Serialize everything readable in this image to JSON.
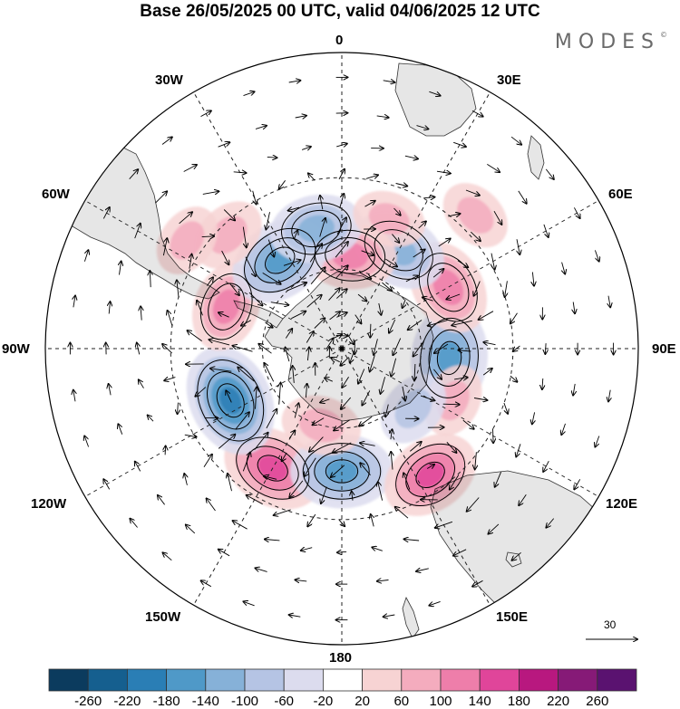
{
  "title": "Base 26/05/2025 00 UTC, valid 04/06/2025 12 UTC",
  "brand": {
    "name": "MODES",
    "mark": "©"
  },
  "longitude_labels": {
    "lon_0": "0",
    "lon_30e": "30E",
    "lon_60e": "60E",
    "lon_90e": "90E",
    "lon_120e": "120E",
    "lon_150e": "150E",
    "lon_180": "180",
    "lon_150w": "150W",
    "lon_120w": "120W",
    "lon_90w": "90W",
    "lon_60w": "60W",
    "lon_30w": "30W"
  },
  "vector_reference": {
    "value": "30"
  },
  "colorbar": {
    "tick_labels": [
      "-260",
      "-220",
      "-180",
      "-140",
      "-100",
      "-60",
      "-20",
      "20",
      "60",
      "100",
      "140",
      "180",
      "220",
      "260"
    ],
    "colors": [
      "#0b3b5e",
      "#155f8f",
      "#2a7eb5",
      "#4f99c8",
      "#86b1d8",
      "#b5c4e4",
      "#dcdcee",
      "#ffffff",
      "#f7d3d3",
      "#f4acbe",
      "#ee7eaa",
      "#e0459a",
      "#b8187f",
      "#861a77",
      "#5a1270"
    ]
  },
  "projection": {
    "type": "south-polar-stereographic",
    "pole": "South Pole"
  },
  "anomaly_centers": [
    {
      "lon": -150,
      "lat": -40,
      "value": 150
    },
    {
      "lon": -115,
      "lat": -45,
      "value": -180
    },
    {
      "lon": -70,
      "lat": -45,
      "value": 110
    },
    {
      "lon": 180,
      "lat": -45,
      "value": -150
    },
    {
      "lon": 145,
      "lat": -35,
      "value": 140
    },
    {
      "lon": 95,
      "lat": -50,
      "value": -160
    },
    {
      "lon": 60,
      "lat": -45,
      "value": 130
    },
    {
      "lon": 30,
      "lat": -48,
      "value": -130
    },
    {
      "lon": 5,
      "lat": -55,
      "value": 120
    },
    {
      "lon": -35,
      "lat": -50,
      "value": -150
    },
    {
      "lon": -12,
      "lat": -45,
      "value": -120
    },
    {
      "lon": -45,
      "lat": -33,
      "value": 70
    },
    {
      "lon": -55,
      "lat": -25,
      "value": 60
    },
    {
      "lon": 20,
      "lat": -40,
      "value": 60
    },
    {
      "lon": 115,
      "lat": -45,
      "value": 60
    },
    {
      "lon": 130,
      "lat": -55,
      "value": -70
    },
    {
      "lon": -165,
      "lat": -60,
      "value": 80
    },
    {
      "lon": 45,
      "lat": -25,
      "value": 60
    }
  ]
}
